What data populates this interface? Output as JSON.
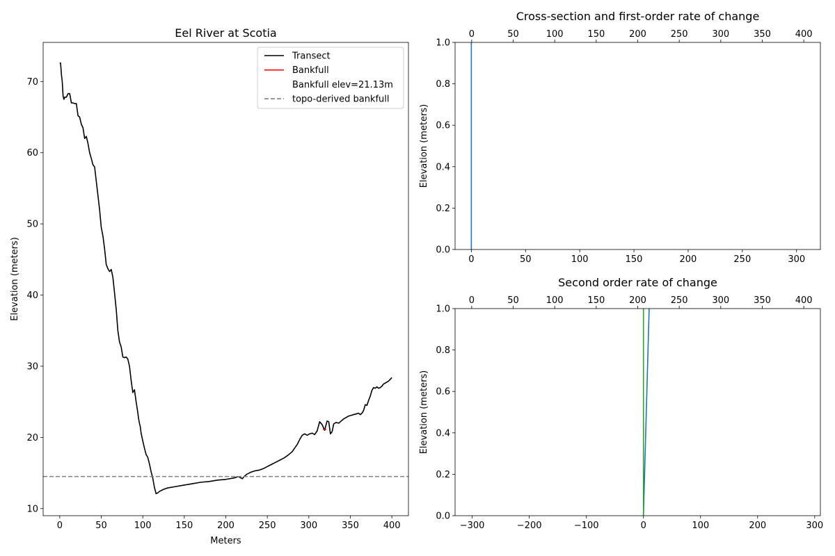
{
  "chart_data": [
    {
      "id": "main",
      "type": "line",
      "title": "Eel River at Scotia",
      "xlabel": "Meters",
      "ylabel": "Elevation (meters)",
      "xlim": [
        -20,
        420
      ],
      "ylim": [
        9,
        75.5
      ],
      "xticks": [
        0,
        50,
        100,
        150,
        200,
        250,
        300,
        350,
        400
      ],
      "yticks": [
        10,
        20,
        30,
        40,
        50,
        60,
        70
      ],
      "legend_position": "top-right",
      "legend": [
        {
          "label": "Transect",
          "style": "solid",
          "color": "#000000"
        },
        {
          "label": "Bankfull",
          "style": "solid",
          "color": "#ff0000"
        },
        {
          "label": "Bankfull elev=21.13m",
          "style": "none",
          "color": "#ffffff"
        },
        {
          "label": "topo-derived bankfull",
          "style": "dashed",
          "color": "#808080"
        }
      ],
      "series": [
        {
          "name": "Transect",
          "color": "#000000",
          "x": [
            0,
            1,
            2,
            3,
            4,
            5,
            6,
            8,
            10,
            12,
            14,
            16,
            18,
            20,
            22,
            24,
            26,
            28,
            30,
            32,
            34,
            36,
            38,
            40,
            42,
            44,
            46,
            48,
            50,
            52,
            54,
            56,
            58,
            60,
            62,
            64,
            66,
            68,
            70,
            72,
            74,
            76,
            78,
            80,
            82,
            84,
            86,
            88,
            90,
            92,
            94,
            95,
            96,
            97,
            98,
            100,
            102,
            104,
            106,
            108,
            110,
            112,
            114,
            116,
            118,
            120,
            125,
            130,
            140,
            150,
            160,
            170,
            180,
            190,
            200,
            210,
            215,
            220,
            222,
            225,
            230,
            235,
            240,
            245,
            250,
            255,
            260,
            265,
            270,
            275,
            280,
            283,
            286,
            289,
            292,
            295,
            298,
            301,
            304,
            307,
            310,
            313,
            316,
            319,
            322,
            324,
            326,
            328,
            330,
            333,
            336,
            339,
            342,
            345,
            348,
            351,
            354,
            357,
            360,
            362,
            364,
            366,
            368,
            370,
            372,
            374,
            376,
            378,
            380,
            382,
            384,
            386,
            388,
            390,
            393,
            396,
            400
          ],
          "y": [
            72.6,
            72.6,
            71.0,
            70.0,
            68.0,
            67.5,
            67.8,
            67.8,
            68.3,
            68.3,
            67.0,
            67.0,
            66.9,
            66.9,
            65.2,
            65.0,
            64.0,
            63.5,
            62.0,
            62.3,
            61.3,
            60.0,
            59.2,
            58.3,
            58.0,
            56.0,
            54.0,
            52.0,
            49.5,
            48.3,
            46.5,
            44.3,
            43.7,
            43.3,
            43.6,
            42.5,
            40.3,
            38.0,
            35.0,
            33.4,
            32.7,
            31.3,
            31.2,
            31.3,
            31.0,
            30.0,
            28.0,
            26.3,
            26.7,
            25.0,
            23.5,
            22.6,
            22.0,
            21.5,
            20.6,
            19.5,
            18.5,
            17.6,
            17.2,
            16.3,
            15.2,
            14.3,
            13.0,
            12.1,
            12.2,
            12.4,
            12.7,
            12.9,
            13.1,
            13.3,
            13.5,
            13.7,
            13.8,
            14.0,
            14.1,
            14.3,
            14.5,
            14.2,
            14.5,
            14.8,
            15.1,
            15.3,
            15.4,
            15.6,
            15.9,
            16.2,
            16.5,
            16.8,
            17.1,
            17.5,
            18.0,
            18.5,
            19.0,
            19.7,
            20.3,
            20.5,
            20.3,
            20.5,
            20.6,
            20.4,
            20.9,
            22.2,
            21.8,
            21.0,
            22.3,
            22.2,
            20.5,
            20.8,
            21.9,
            22.1,
            22.0,
            22.3,
            22.6,
            22.8,
            23.0,
            23.1,
            23.2,
            23.3,
            23.4,
            23.2,
            23.4,
            23.8,
            24.6,
            24.5,
            25.2,
            25.8,
            26.6,
            27.0,
            26.9,
            27.1,
            26.9,
            27.0,
            27.2,
            27.5,
            27.7,
            27.9,
            28.4
          ]
        },
        {
          "name": "Bankfull",
          "color": "#ff0000",
          "x": [
            317,
            319,
            321
          ],
          "y": [
            21.13,
            21.13,
            21.13
          ]
        },
        {
          "name": "topo-derived bankfull",
          "color": "#808080",
          "style": "dashed",
          "hline": 14.5
        }
      ]
    },
    {
      "id": "first_order",
      "type": "line",
      "title": "Cross-section and first-order rate of change",
      "xlabel": "",
      "ylabel": "Elevation (meters)",
      "xlim": [
        -15,
        322
      ],
      "ylim": [
        0.0,
        1.0
      ],
      "xticks": [
        0,
        50,
        100,
        150,
        200,
        250,
        300
      ],
      "yticks": [
        0.0,
        0.2,
        0.4,
        0.6,
        0.8,
        1.0
      ],
      "top_xlim": [
        -20,
        420
      ],
      "top_xticks": [
        0,
        50,
        100,
        150,
        200,
        250,
        300,
        350,
        400
      ],
      "series": [
        {
          "color": "#1f77b4",
          "x": [
            0,
            0
          ],
          "y": [
            0.0,
            1.0
          ]
        }
      ]
    },
    {
      "id": "second_order",
      "type": "line",
      "title": "Second order rate of change",
      "xlabel": "",
      "ylabel": "Elevation (meters)",
      "xlim": [
        -330,
        310
      ],
      "ylim": [
        0.0,
        1.0
      ],
      "xticks": [
        -300,
        -200,
        -100,
        0,
        100,
        200,
        300
      ],
      "yticks": [
        0.0,
        0.2,
        0.4,
        0.6,
        0.8,
        1.0
      ],
      "top_xlim": [
        -20,
        420
      ],
      "top_xticks": [
        0,
        50,
        100,
        150,
        200,
        250,
        300,
        350,
        400
      ],
      "series": [
        {
          "color": "#1f77b4",
          "x": [
            0,
            10
          ],
          "y": [
            0.0,
            1.0
          ]
        },
        {
          "color": "#2ca02c",
          "x": [
            0,
            0
          ],
          "y": [
            0.0,
            1.0
          ]
        }
      ]
    }
  ]
}
